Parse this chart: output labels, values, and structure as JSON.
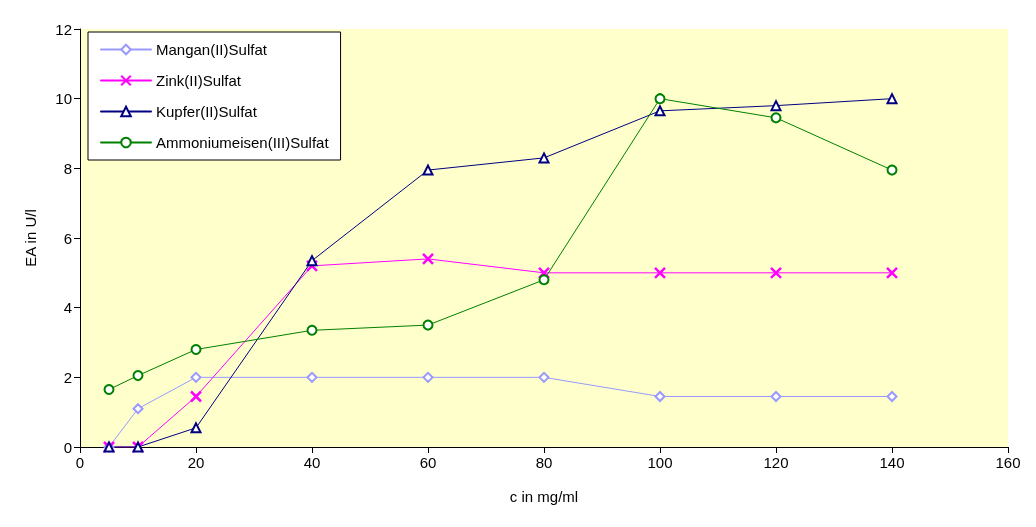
{
  "chart_data": {
    "type": "line",
    "xlabel": "c in mg/ml",
    "ylabel": "EA in U/l",
    "x": [
      5,
      10,
      20,
      40,
      60,
      80,
      100,
      120,
      140
    ],
    "xlim": [
      0,
      160
    ],
    "xticks": [
      0,
      20,
      40,
      60,
      80,
      100,
      120,
      140,
      160
    ],
    "ylim": [
      0,
      12
    ],
    "yticks": [
      0,
      2,
      4,
      6,
      8,
      10,
      12
    ],
    "grid": false,
    "legend": "top left",
    "line_style": "solid",
    "series": [
      {
        "name": "Mangan(II)Sulfat",
        "color": "#9999ff",
        "marker": "diamond",
        "values": [
          0,
          1.1,
          2.0,
          2.0,
          2.0,
          2.0,
          1.45,
          1.45,
          1.45
        ]
      },
      {
        "name": "Zink(II)Sulfat",
        "color": "#ff00ff",
        "marker": "cross",
        "values": [
          0,
          0,
          1.45,
          5.2,
          5.4,
          5.0,
          5.0,
          5.0,
          5.0
        ]
      },
      {
        "name": "Kupfer(II)Sulfat",
        "color": "#000080",
        "marker": "triangle",
        "values": [
          0,
          0,
          0.55,
          5.35,
          7.95,
          8.3,
          9.65,
          9.8,
          10.0
        ]
      },
      {
        "name": "Ammoniumeisen(III)Sulfat",
        "color": "#008000",
        "marker": "circle",
        "values": [
          1.65,
          2.05,
          2.8,
          3.35,
          3.5,
          4.8,
          10.0,
          9.45,
          7.95
        ]
      }
    ]
  }
}
